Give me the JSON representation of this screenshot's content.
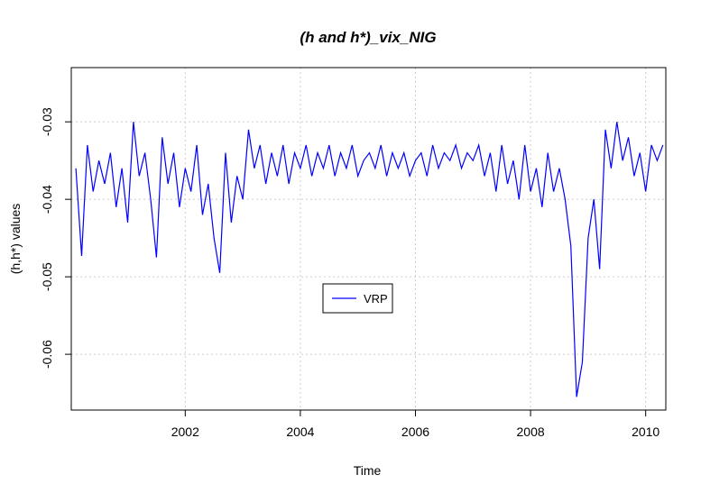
{
  "chart_data": {
    "type": "line",
    "title": "(h and h*)_vix_NIG",
    "x_label": "Time",
    "y_label": "(h,h*) values",
    "x": [
      2000.1,
      2000.2,
      2000.3,
      2000.4,
      2000.5,
      2000.6,
      2000.7,
      2000.8,
      2000.9,
      2001.0,
      2001.1,
      2001.2,
      2001.3,
      2001.4,
      2001.5,
      2001.6,
      2001.7,
      2001.8,
      2001.9,
      2002.0,
      2002.1,
      2002.2,
      2002.3,
      2002.4,
      2002.5,
      2002.6,
      2002.7,
      2002.8,
      2002.9,
      2003.0,
      2003.1,
      2003.2,
      2003.3,
      2003.4,
      2003.5,
      2003.6,
      2003.7,
      2003.8,
      2003.9,
      2004.0,
      2004.1,
      2004.2,
      2004.3,
      2004.4,
      2004.5,
      2004.6,
      2004.7,
      2004.8,
      2004.9,
      2005.0,
      2005.1,
      2005.2,
      2005.3,
      2005.4,
      2005.5,
      2005.6,
      2005.7,
      2005.8,
      2005.9,
      2006.0,
      2006.1,
      2006.2,
      2006.3,
      2006.4,
      2006.5,
      2006.6,
      2006.7,
      2006.8,
      2006.9,
      2007.0,
      2007.1,
      2007.2,
      2007.3,
      2007.4,
      2007.5,
      2007.6,
      2007.7,
      2007.8,
      2007.9,
      2008.0,
      2008.1,
      2008.2,
      2008.3,
      2008.4,
      2008.5,
      2008.6,
      2008.7,
      2008.8,
      2008.9,
      2009.0,
      2009.1,
      2009.2,
      2009.3,
      2009.4,
      2009.5,
      2009.6,
      2009.7,
      2009.8,
      2009.9,
      2010.0,
      2010.1,
      2010.2,
      2010.3
    ],
    "series": [
      {
        "name": "VRP",
        "color": "#0000ff",
        "values": [
          -0.036,
          -0.0473,
          -0.033,
          -0.039,
          -0.035,
          -0.038,
          -0.034,
          -0.041,
          -0.036,
          -0.043,
          -0.03,
          -0.037,
          -0.034,
          -0.04,
          -0.0475,
          -0.032,
          -0.038,
          -0.034,
          -0.041,
          -0.036,
          -0.039,
          -0.033,
          -0.042,
          -0.038,
          -0.045,
          -0.0495,
          -0.034,
          -0.043,
          -0.037,
          -0.04,
          -0.031,
          -0.036,
          -0.033,
          -0.038,
          -0.034,
          -0.037,
          -0.033,
          -0.038,
          -0.034,
          -0.036,
          -0.033,
          -0.037,
          -0.034,
          -0.036,
          -0.033,
          -0.037,
          -0.034,
          -0.036,
          -0.033,
          -0.037,
          -0.035,
          -0.034,
          -0.036,
          -0.033,
          -0.037,
          -0.034,
          -0.036,
          -0.034,
          -0.037,
          -0.035,
          -0.034,
          -0.037,
          -0.033,
          -0.036,
          -0.034,
          -0.035,
          -0.033,
          -0.036,
          -0.034,
          -0.035,
          -0.033,
          -0.037,
          -0.034,
          -0.039,
          -0.033,
          -0.038,
          -0.035,
          -0.04,
          -0.033,
          -0.039,
          -0.036,
          -0.041,
          -0.034,
          -0.039,
          -0.036,
          -0.04,
          -0.046,
          -0.0655,
          -0.061,
          -0.045,
          -0.04,
          -0.049,
          -0.031,
          -0.036,
          -0.03,
          -0.035,
          -0.032,
          -0.037,
          -0.034,
          -0.039,
          -0.033,
          -0.035,
          -0.033
        ]
      }
    ],
    "xlim": [
      2000.02,
      2010.35
    ],
    "ylim": [
      -0.0672,
      -0.023
    ],
    "xticks": [
      2002,
      2004,
      2006,
      2008,
      2010
    ],
    "yticks": [
      -0.03,
      -0.04,
      -0.05,
      -0.06
    ],
    "grid": true,
    "legend_position": "center"
  }
}
